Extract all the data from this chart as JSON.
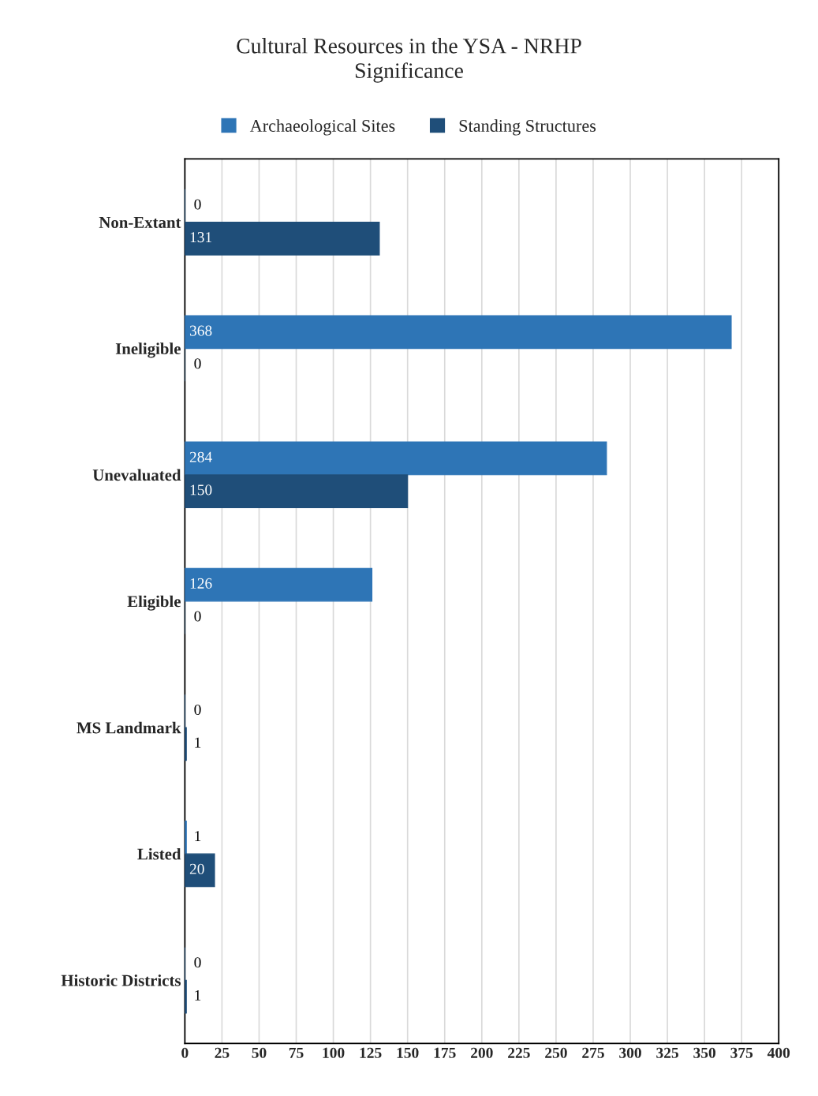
{
  "chart_data": {
    "type": "bar",
    "orientation": "horizontal",
    "title": "Cultural Resources in the YSA - NRHP\nSignificance",
    "categories": [
      "Non-Extant",
      "Ineligible",
      "Unevaluated",
      "Eligible",
      "MS Landmark",
      "Listed",
      "Historic Districts"
    ],
    "series": [
      {
        "name": "Archaeological Sites",
        "color": "#2e75b6",
        "values": [
          0,
          368,
          284,
          126,
          0,
          1,
          0
        ],
        "value_labels": [
          "0",
          "368",
          "284",
          "126",
          "0",
          "1",
          "0"
        ]
      },
      {
        "name": "Standing Structures",
        "color": "#1f4e79",
        "values": [
          131,
          0,
          150,
          0,
          1,
          20,
          1
        ],
        "value_labels": [
          "131",
          "0",
          "150",
          "0",
          "1",
          "20",
          "1"
        ]
      }
    ],
    "xlim": [
      0,
      400
    ],
    "xticks": [
      0,
      25,
      50,
      75,
      100,
      125,
      150,
      175,
      200,
      225,
      250,
      275,
      300,
      325,
      350,
      375,
      400
    ],
    "grid": "x",
    "legend": "top"
  }
}
